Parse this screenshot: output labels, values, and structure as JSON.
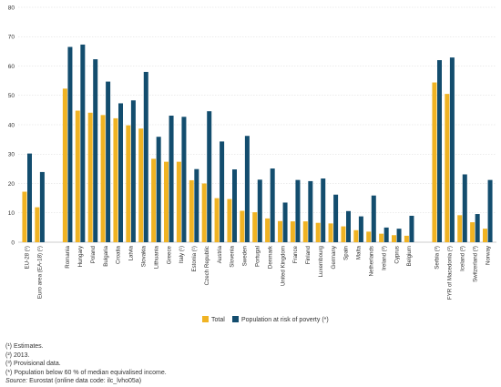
{
  "chart_data": {
    "type": "bar",
    "ylim": [
      0,
      80
    ],
    "yticks": [
      0,
      10,
      20,
      30,
      40,
      50,
      60,
      70,
      80
    ],
    "grid": true,
    "legend_placement": "bottom-center",
    "groups": [
      [
        "EU-28 (¹)",
        "Euro area (EA-18) (¹)"
      ],
      [
        "Romania",
        "Hungary",
        "Poland",
        "Bulgaria",
        "Croatia",
        "Latvia",
        "Slovakia",
        "Lithuania",
        "Greece",
        "Italy (¹)",
        "Estonia (¹)",
        "Czech Republic",
        "Austria",
        "Slovenia",
        "Sweden",
        "Portugal",
        "Denmark",
        "United Kingdom",
        "France",
        "Finland",
        "Luxembourg",
        "Germany",
        "Spain",
        "Malta",
        "Netherlands",
        "Ireland (²)",
        "Cyprus",
        "Belgium"
      ],
      [
        "Serbia (³)",
        "FYR of Macedonia (²)",
        "Iceland (²)",
        "Switzerland (³)",
        "Norway"
      ]
    ],
    "categories": [
      "EU-28 (¹)",
      "Euro area (EA-18) (¹)",
      "Romania",
      "Hungary",
      "Poland",
      "Bulgaria",
      "Croatia",
      "Latvia",
      "Slovakia",
      "Lithuania",
      "Greece",
      "Italy (¹)",
      "Estonia (¹)",
      "Czech Republic",
      "Austria",
      "Slovenia",
      "Sweden",
      "Portugal",
      "Denmark",
      "United Kingdom",
      "France",
      "Finland",
      "Luxembourg",
      "Germany",
      "Spain",
      "Malta",
      "Netherlands",
      "Ireland (²)",
      "Cyprus",
      "Belgium",
      "Serbia (³)",
      "FYR of Macedonia (²)",
      "Iceland (²)",
      "Switzerland (³)",
      "Norway"
    ],
    "series": [
      {
        "name": "Total",
        "color": "#f0b323",
        "values": [
          17.2,
          11.9,
          52.3,
          44.8,
          44.1,
          43.3,
          42.2,
          39.8,
          38.7,
          28.4,
          27.4,
          27.4,
          21.1,
          20.0,
          15.0,
          14.7,
          10.7,
          10.2,
          8.1,
          7.2,
          7.1,
          7.1,
          6.6,
          6.4,
          5.4,
          4.1,
          3.6,
          2.9,
          2.4,
          2.2,
          54.4,
          50.5,
          9.2,
          6.8,
          4.6
        ]
      },
      {
        "name": "Population at risk of poverty (*)",
        "color": "#134d6e",
        "values": [
          30.2,
          23.9,
          66.5,
          67.3,
          62.3,
          54.7,
          47.3,
          48.3,
          58.0,
          35.9,
          43.1,
          42.7,
          24.9,
          44.6,
          34.3,
          24.8,
          36.2,
          21.3,
          25.1,
          13.5,
          21.2,
          20.8,
          21.7,
          16.2,
          10.6,
          8.8,
          15.9,
          5.0,
          4.6,
          9.0,
          62.0,
          62.9,
          23.1,
          9.6,
          21.2
        ]
      }
    ]
  },
  "notes": [
    "(¹) Estimates.",
    "(²) 2013.",
    "(³) Provisional data.",
    "(*) Population below 60 % of median equivalised income."
  ],
  "source": {
    "label": "Source:",
    "text": "Eurostat (online data code: ilc_lvho05a)"
  }
}
